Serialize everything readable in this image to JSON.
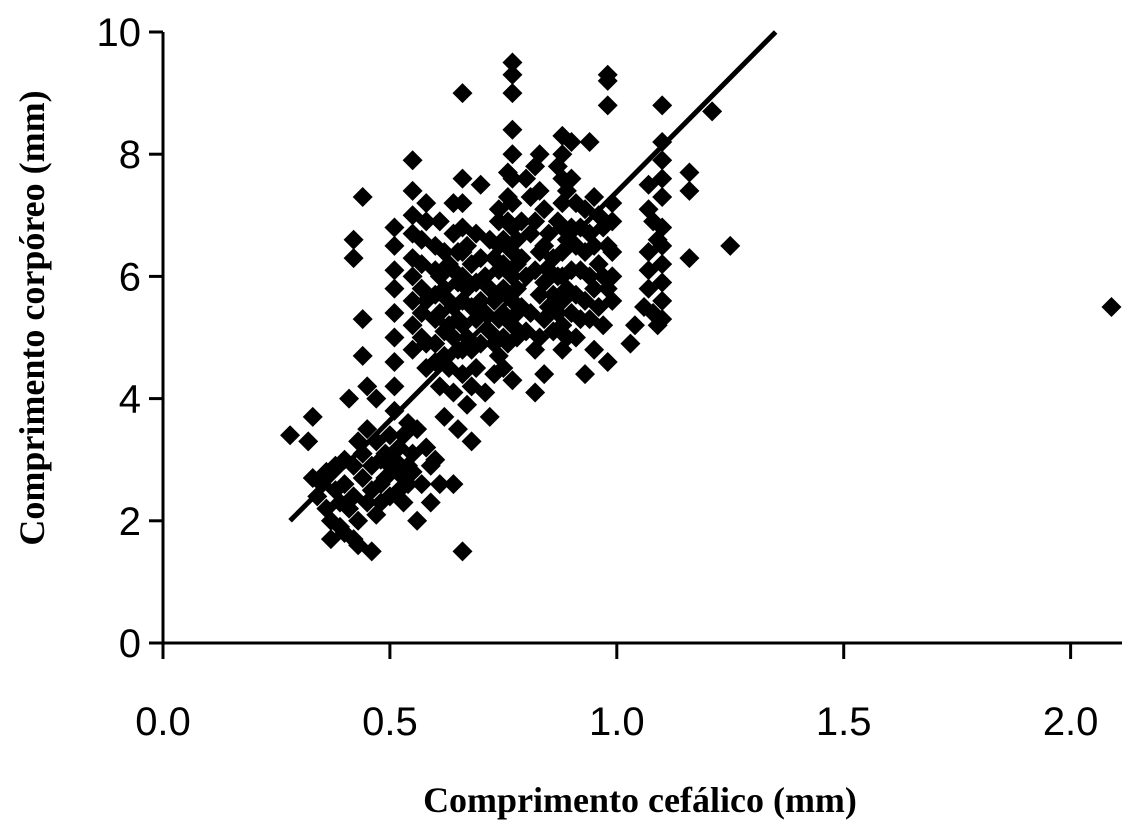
{
  "chart_data": {
    "type": "scatter",
    "title": "",
    "xlabel": "Comprimento cefálico (mm)",
    "ylabel": "Comprimento corpóreo (mm)",
    "xlim": [
      0.0,
      2.1
    ],
    "ylim": [
      0,
      10
    ],
    "x_ticks": [
      "0.0",
      "0.5",
      "1.0",
      "1.5",
      "2.0"
    ],
    "y_ticks": [
      "0",
      "2",
      "4",
      "6",
      "8",
      "10"
    ],
    "grid": false,
    "legend": "none",
    "marker": "diamond",
    "trendline": {
      "type": "linear",
      "x": [
        0.28,
        1.35
      ],
      "y": [
        2.0,
        10.0
      ]
    },
    "points": [
      [
        0.28,
        3.4
      ],
      [
        0.32,
        3.3
      ],
      [
        0.33,
        3.7
      ],
      [
        0.33,
        2.7
      ],
      [
        0.34,
        2.4
      ],
      [
        0.35,
        2.6
      ],
      [
        0.36,
        2.2
      ],
      [
        0.36,
        2.8
      ],
      [
        0.37,
        1.7
      ],
      [
        0.37,
        2.0
      ],
      [
        0.38,
        2.5
      ],
      [
        0.38,
        2.9
      ],
      [
        0.39,
        1.9
      ],
      [
        0.39,
        2.3
      ],
      [
        0.4,
        1.8
      ],
      [
        0.4,
        2.6
      ],
      [
        0.4,
        3.0
      ],
      [
        0.41,
        4.0
      ],
      [
        0.41,
        2.2
      ],
      [
        0.42,
        1.7
      ],
      [
        0.42,
        2.4
      ],
      [
        0.42,
        2.9
      ],
      [
        0.42,
        6.6
      ],
      [
        0.42,
        6.3
      ],
      [
        0.43,
        3.3
      ],
      [
        0.43,
        2.0
      ],
      [
        0.43,
        1.6
      ],
      [
        0.44,
        2.7
      ],
      [
        0.44,
        3.1
      ],
      [
        0.44,
        5.3
      ],
      [
        0.44,
        4.7
      ],
      [
        0.44,
        7.3
      ],
      [
        0.45,
        2.3
      ],
      [
        0.45,
        3.5
      ],
      [
        0.45,
        4.2
      ],
      [
        0.46,
        2.5
      ],
      [
        0.46,
        1.5
      ],
      [
        0.46,
        2.9
      ],
      [
        0.47,
        2.1
      ],
      [
        0.47,
        3.3
      ],
      [
        0.47,
        4.0
      ],
      [
        0.48,
        2.6
      ],
      [
        0.48,
        3.0
      ],
      [
        0.48,
        2.3
      ],
      [
        0.49,
        3.1
      ],
      [
        0.49,
        2.7
      ],
      [
        0.5,
        2.4
      ],
      [
        0.5,
        3.4
      ],
      [
        0.5,
        2.9
      ],
      [
        0.51,
        6.8
      ],
      [
        0.51,
        6.5
      ],
      [
        0.51,
        6.1
      ],
      [
        0.51,
        5.8
      ],
      [
        0.51,
        5.4
      ],
      [
        0.51,
        5.0
      ],
      [
        0.51,
        4.6
      ],
      [
        0.51,
        4.2
      ],
      [
        0.51,
        3.8
      ],
      [
        0.51,
        3.0
      ],
      [
        0.52,
        2.8
      ],
      [
        0.52,
        2.5
      ],
      [
        0.52,
        3.2
      ],
      [
        0.53,
        2.7
      ],
      [
        0.53,
        3.4
      ],
      [
        0.53,
        2.3
      ],
      [
        0.54,
        2.9
      ],
      [
        0.54,
        3.6
      ],
      [
        0.54,
        2.6
      ],
      [
        0.55,
        7.9
      ],
      [
        0.55,
        7.4
      ],
      [
        0.55,
        7.0
      ],
      [
        0.55,
        6.7
      ],
      [
        0.55,
        6.3
      ],
      [
        0.55,
        6.0
      ],
      [
        0.55,
        5.6
      ],
      [
        0.55,
        5.2
      ],
      [
        0.55,
        4.8
      ],
      [
        0.55,
        3.1
      ],
      [
        0.55,
        2.8
      ],
      [
        0.56,
        2.0
      ],
      [
        0.56,
        3.5
      ],
      [
        0.57,
        6.6
      ],
      [
        0.57,
        6.2
      ],
      [
        0.57,
        5.8
      ],
      [
        0.57,
        5.4
      ],
      [
        0.57,
        5.0
      ],
      [
        0.57,
        2.6
      ],
      [
        0.58,
        7.2
      ],
      [
        0.58,
        6.9
      ],
      [
        0.58,
        5.6
      ],
      [
        0.58,
        4.9
      ],
      [
        0.58,
        4.5
      ],
      [
        0.58,
        3.2
      ],
      [
        0.59,
        2.9
      ],
      [
        0.59,
        2.3
      ],
      [
        0.6,
        6.5
      ],
      [
        0.6,
        6.1
      ],
      [
        0.6,
        5.7
      ],
      [
        0.6,
        5.3
      ],
      [
        0.6,
        4.9
      ],
      [
        0.6,
        4.6
      ],
      [
        0.6,
        3.0
      ],
      [
        0.61,
        6.9
      ],
      [
        0.61,
        6.0
      ],
      [
        0.61,
        5.4
      ],
      [
        0.61,
        4.2
      ],
      [
        0.61,
        2.6
      ],
      [
        0.62,
        6.4
      ],
      [
        0.62,
        5.8
      ],
      [
        0.62,
        5.1
      ],
      [
        0.62,
        4.7
      ],
      [
        0.62,
        3.7
      ],
      [
        0.63,
        6.2
      ],
      [
        0.63,
        5.6
      ],
      [
        0.63,
        5.2
      ],
      [
        0.63,
        4.5
      ],
      [
        0.64,
        7.2
      ],
      [
        0.64,
        6.7
      ],
      [
        0.64,
        6.1
      ],
      [
        0.64,
        5.5
      ],
      [
        0.64,
        5.0
      ],
      [
        0.64,
        4.1
      ],
      [
        0.64,
        2.6
      ],
      [
        0.65,
        6.4
      ],
      [
        0.65,
        5.9
      ],
      [
        0.65,
        5.3
      ],
      [
        0.65,
        4.8
      ],
      [
        0.65,
        3.5
      ],
      [
        0.66,
        9.0
      ],
      [
        0.66,
        7.6
      ],
      [
        0.66,
        7.2
      ],
      [
        0.66,
        6.8
      ],
      [
        0.66,
        6.4
      ],
      [
        0.66,
        6.0
      ],
      [
        0.66,
        5.6
      ],
      [
        0.66,
        5.2
      ],
      [
        0.66,
        4.8
      ],
      [
        0.66,
        4.4
      ],
      [
        0.66,
        1.5
      ],
      [
        0.67,
        6.5
      ],
      [
        0.67,
        5.8
      ],
      [
        0.67,
        5.0
      ],
      [
        0.67,
        3.9
      ],
      [
        0.68,
        6.2
      ],
      [
        0.68,
        5.5
      ],
      [
        0.68,
        4.8
      ],
      [
        0.68,
        4.2
      ],
      [
        0.68,
        3.3
      ],
      [
        0.69,
        6.7
      ],
      [
        0.69,
        5.9
      ],
      [
        0.69,
        5.3
      ],
      [
        0.69,
        4.5
      ],
      [
        0.7,
        7.5
      ],
      [
        0.7,
        6.3
      ],
      [
        0.7,
        5.6
      ],
      [
        0.7,
        4.9
      ],
      [
        0.71,
        6.0
      ],
      [
        0.71,
        5.4
      ],
      [
        0.71,
        4.1
      ],
      [
        0.72,
        6.6
      ],
      [
        0.72,
        5.8
      ],
      [
        0.72,
        5.1
      ],
      [
        0.72,
        3.7
      ],
      [
        0.73,
        6.3
      ],
      [
        0.73,
        5.6
      ],
      [
        0.73,
        4.9
      ],
      [
        0.73,
        4.4
      ],
      [
        0.74,
        7.1
      ],
      [
        0.74,
        6.9
      ],
      [
        0.74,
        6.5
      ],
      [
        0.74,
        6.1
      ],
      [
        0.74,
        5.7
      ],
      [
        0.74,
        5.3
      ],
      [
        0.74,
        4.7
      ],
      [
        0.75,
        6.6
      ],
      [
        0.75,
        6.2
      ],
      [
        0.75,
        5.8
      ],
      [
        0.75,
        5.4
      ],
      [
        0.75,
        5.0
      ],
      [
        0.75,
        4.5
      ],
      [
        0.76,
        7.7
      ],
      [
        0.76,
        7.3
      ],
      [
        0.76,
        6.9
      ],
      [
        0.76,
        6.5
      ],
      [
        0.76,
        6.1
      ],
      [
        0.76,
        5.7
      ],
      [
        0.76,
        5.3
      ],
      [
        0.76,
        4.9
      ],
      [
        0.77,
        9.5
      ],
      [
        0.77,
        9.3
      ],
      [
        0.77,
        9.0
      ],
      [
        0.77,
        8.4
      ],
      [
        0.77,
        8.0
      ],
      [
        0.77,
        7.6
      ],
      [
        0.77,
        7.2
      ],
      [
        0.77,
        6.8
      ],
      [
        0.77,
        6.4
      ],
      [
        0.77,
        6.0
      ],
      [
        0.77,
        5.6
      ],
      [
        0.77,
        5.2
      ],
      [
        0.77,
        4.3
      ],
      [
        0.78,
        6.6
      ],
      [
        0.78,
        6.2
      ],
      [
        0.78,
        5.8
      ],
      [
        0.78,
        5.4
      ],
      [
        0.78,
        5.0
      ],
      [
        0.79,
        6.9
      ],
      [
        0.79,
        6.3
      ],
      [
        0.79,
        5.5
      ],
      [
        0.8,
        7.6
      ],
      [
        0.8,
        6.0
      ],
      [
        0.8,
        5.1
      ],
      [
        0.81,
        7.3
      ],
      [
        0.81,
        6.7
      ],
      [
        0.81,
        5.4
      ],
      [
        0.82,
        7.8
      ],
      [
        0.82,
        6.9
      ],
      [
        0.82,
        6.1
      ],
      [
        0.82,
        4.8
      ],
      [
        0.82,
        4.1
      ],
      [
        0.83,
        8.0
      ],
      [
        0.83,
        7.4
      ],
      [
        0.83,
        6.4
      ],
      [
        0.83,
        5.7
      ],
      [
        0.83,
        5.0
      ],
      [
        0.84,
        7.1
      ],
      [
        0.84,
        6.5
      ],
      [
        0.84,
        5.9
      ],
      [
        0.84,
        5.3
      ],
      [
        0.84,
        4.4
      ],
      [
        0.85,
        6.7
      ],
      [
        0.85,
        6.1
      ],
      [
        0.85,
        5.5
      ],
      [
        0.86,
        6.3
      ],
      [
        0.86,
        5.7
      ],
      [
        0.86,
        5.1
      ],
      [
        0.87,
        7.8
      ],
      [
        0.87,
        6.9
      ],
      [
        0.87,
        6.0
      ],
      [
        0.87,
        5.4
      ],
      [
        0.88,
        8.3
      ],
      [
        0.88,
        8.0
      ],
      [
        0.88,
        7.6
      ],
      [
        0.88,
        7.2
      ],
      [
        0.88,
        6.8
      ],
      [
        0.88,
        6.4
      ],
      [
        0.88,
        6.0
      ],
      [
        0.88,
        5.6
      ],
      [
        0.88,
        5.2
      ],
      [
        0.88,
        4.8
      ],
      [
        0.89,
        7.4
      ],
      [
        0.89,
        6.6
      ],
      [
        0.89,
        5.8
      ],
      [
        0.89,
        5.0
      ],
      [
        0.9,
        8.2
      ],
      [
        0.9,
        7.6
      ],
      [
        0.9,
        6.8
      ],
      [
        0.9,
        6.1
      ],
      [
        0.9,
        5.4
      ],
      [
        0.91,
        7.2
      ],
      [
        0.91,
        6.5
      ],
      [
        0.91,
        5.7
      ],
      [
        0.91,
        5.0
      ],
      [
        0.92,
        6.8
      ],
      [
        0.92,
        6.1
      ],
      [
        0.92,
        5.3
      ],
      [
        0.93,
        7.1
      ],
      [
        0.93,
        6.4
      ],
      [
        0.93,
        5.6
      ],
      [
        0.93,
        4.4
      ],
      [
        0.94,
        8.2
      ],
      [
        0.94,
        6.7
      ],
      [
        0.94,
        6.0
      ],
      [
        0.94,
        5.3
      ],
      [
        0.95,
        7.3
      ],
      [
        0.95,
        6.5
      ],
      [
        0.95,
        5.8
      ],
      [
        0.95,
        4.8
      ],
      [
        0.96,
        7.0
      ],
      [
        0.96,
        6.2
      ],
      [
        0.96,
        5.5
      ],
      [
        0.97,
        6.8
      ],
      [
        0.97,
        6.0
      ],
      [
        0.97,
        5.2
      ],
      [
        0.98,
        9.3
      ],
      [
        0.98,
        9.2
      ],
      [
        0.98,
        8.8
      ],
      [
        0.98,
        6.5
      ],
      [
        0.98,
        5.8
      ],
      [
        0.98,
        4.6
      ],
      [
        0.99,
        7.2
      ],
      [
        0.99,
        6.9
      ],
      [
        0.99,
        6.4
      ],
      [
        0.99,
        6.0
      ],
      [
        0.99,
        5.6
      ],
      [
        1.03,
        4.9
      ],
      [
        1.04,
        5.2
      ],
      [
        1.06,
        5.5
      ],
      [
        1.07,
        7.1
      ],
      [
        1.07,
        6.4
      ],
      [
        1.07,
        6.1
      ],
      [
        1.07,
        5.8
      ],
      [
        1.07,
        7.5
      ],
      [
        1.08,
        6.9
      ],
      [
        1.08,
        5.4
      ],
      [
        1.09,
        5.2
      ],
      [
        1.09,
        6.6
      ],
      [
        1.1,
        8.8
      ],
      [
        1.1,
        8.2
      ],
      [
        1.1,
        7.9
      ],
      [
        1.1,
        7.6
      ],
      [
        1.1,
        7.3
      ],
      [
        1.1,
        6.8
      ],
      [
        1.1,
        6.5
      ],
      [
        1.1,
        6.2
      ],
      [
        1.1,
        5.9
      ],
      [
        1.1,
        5.6
      ],
      [
        1.1,
        5.3
      ],
      [
        1.16,
        7.7
      ],
      [
        1.16,
        7.4
      ],
      [
        1.16,
        6.3
      ],
      [
        1.21,
        8.7
      ],
      [
        1.25,
        6.5
      ],
      [
        2.09,
        5.5
      ]
    ]
  }
}
